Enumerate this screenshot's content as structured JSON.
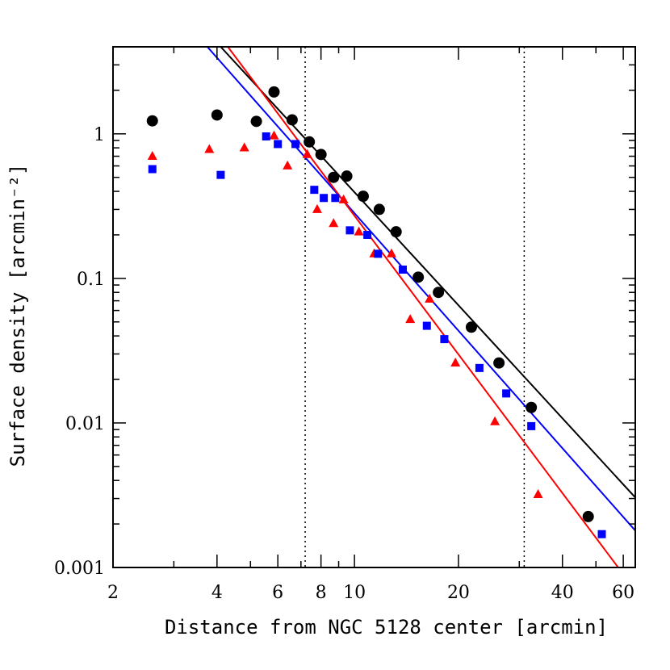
{
  "chart_data": {
    "type": "scatter",
    "xlabel": "Distance from NGC 5128 center [arcmin]",
    "ylabel": "Surface density [arcmin⁻²]",
    "x_scale": "log",
    "y_scale": "log",
    "xlim": [
      2,
      65
    ],
    "ylim": [
      0.001,
      4
    ],
    "x_ticks": [
      2,
      4,
      6,
      8,
      10,
      20,
      40,
      60
    ],
    "y_ticks": [
      0.001,
      0.01,
      0.1,
      1
    ],
    "y_tick_labels": [
      "0.001",
      "0.01",
      "0.1",
      "1"
    ],
    "vertical_lines": [
      7.2,
      31
    ],
    "grid": false,
    "series": [
      {
        "marker": "circle",
        "color": "#000000",
        "points": [
          [
            2.6,
            1.23
          ],
          [
            4.0,
            1.35
          ],
          [
            5.2,
            1.22
          ],
          [
            5.85,
            1.95
          ],
          [
            6.6,
            1.25
          ],
          [
            7.4,
            0.88
          ],
          [
            8.0,
            0.72
          ],
          [
            8.7,
            0.5
          ],
          [
            9.5,
            0.51
          ],
          [
            10.6,
            0.37
          ],
          [
            11.8,
            0.3
          ],
          [
            13.2,
            0.21
          ],
          [
            15.3,
            0.102
          ],
          [
            17.5,
            0.08
          ],
          [
            21.8,
            0.046
          ],
          [
            26.2,
            0.026
          ],
          [
            32.5,
            0.0128
          ],
          [
            47.5,
            0.00225
          ]
        ]
      },
      {
        "marker": "triangle",
        "color": "#ff0000",
        "points": [
          [
            2.6,
            0.7
          ],
          [
            3.8,
            0.78
          ],
          [
            4.8,
            0.8
          ],
          [
            5.85,
            0.97
          ],
          [
            6.4,
            0.6
          ],
          [
            7.3,
            0.72
          ],
          [
            7.8,
            0.3
          ],
          [
            8.7,
            0.24
          ],
          [
            9.3,
            0.35
          ],
          [
            10.3,
            0.21
          ],
          [
            11.4,
            0.148
          ],
          [
            12.8,
            0.148
          ],
          [
            14.5,
            0.052
          ],
          [
            16.5,
            0.072
          ],
          [
            19.6,
            0.026
          ],
          [
            25.5,
            0.0102
          ],
          [
            34.0,
            0.0032
          ]
        ]
      },
      {
        "marker": "square",
        "color": "#0000ff",
        "points": [
          [
            2.6,
            0.57
          ],
          [
            4.1,
            0.52
          ],
          [
            5.55,
            0.96
          ],
          [
            6.0,
            0.85
          ],
          [
            6.75,
            0.85
          ],
          [
            7.65,
            0.41
          ],
          [
            8.15,
            0.36
          ],
          [
            8.8,
            0.36
          ],
          [
            9.7,
            0.215
          ],
          [
            10.9,
            0.2
          ],
          [
            11.7,
            0.148
          ],
          [
            13.8,
            0.115
          ],
          [
            16.2,
            0.047
          ],
          [
            18.2,
            0.038
          ],
          [
            23.0,
            0.024
          ],
          [
            27.5,
            0.016
          ],
          [
            32.5,
            0.0095
          ],
          [
            52.0,
            0.0017
          ]
        ]
      }
    ],
    "fit_lines": [
      {
        "color": "#000000",
        "from": [
          4.1,
          4.0
        ],
        "to": [
          65,
          0.00305
        ]
      },
      {
        "color": "#0000ff",
        "from": [
          3.75,
          4.0
        ],
        "to": [
          65,
          0.0018
        ]
      },
      {
        "color": "#ff0000",
        "from": [
          4.3,
          4.0
        ],
        "to": [
          58,
          0.001
        ]
      }
    ]
  }
}
